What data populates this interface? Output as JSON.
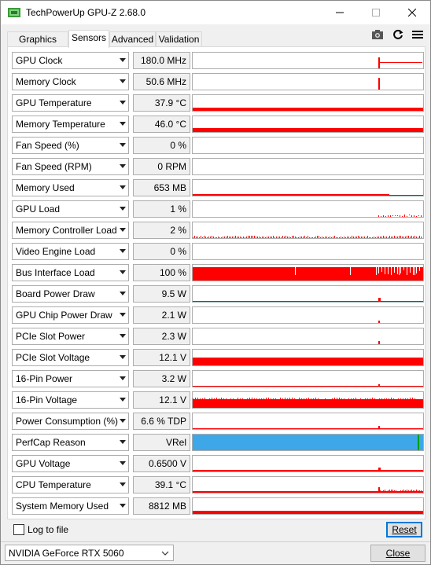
{
  "window": {
    "title": "TechPowerUp GPU-Z 2.68.0"
  },
  "tabs": [
    {
      "label": "Graphics Card"
    },
    {
      "label": "Sensors"
    },
    {
      "label": "Advanced"
    },
    {
      "label": "Validation"
    }
  ],
  "active_tab": "Sensors",
  "toolbar_icons": [
    "camera-icon",
    "refresh-icon",
    "menu-icon"
  ],
  "graph_colors": {
    "default": "#ff0000",
    "perfcap": "#3da7e8",
    "perfcap_marker": "#00a000"
  },
  "sensors": [
    {
      "name": "GPU Clock",
      "value": "180.0 MHz"
    },
    {
      "name": "Memory Clock",
      "value": "50.6 MHz"
    },
    {
      "name": "GPU Temperature",
      "value": "37.9 °C"
    },
    {
      "name": "Memory Temperature",
      "value": "46.0 °C"
    },
    {
      "name": "Fan Speed (%)",
      "value": "0 %"
    },
    {
      "name": "Fan Speed (RPM)",
      "value": "0 RPM"
    },
    {
      "name": "Memory Used",
      "value": "653 MB"
    },
    {
      "name": "GPU Load",
      "value": "1 %"
    },
    {
      "name": "Memory Controller Load",
      "value": "2 %"
    },
    {
      "name": "Video Engine Load",
      "value": "0 %"
    },
    {
      "name": "Bus Interface Load",
      "value": "100 %"
    },
    {
      "name": "Board Power Draw",
      "value": "9.5 W"
    },
    {
      "name": "GPU Chip Power Draw",
      "value": "2.1 W"
    },
    {
      "name": "PCIe Slot Power",
      "value": "2.3 W"
    },
    {
      "name": "PCIe Slot Voltage",
      "value": "12.1 V"
    },
    {
      "name": "16-Pin Power",
      "value": "3.2 W"
    },
    {
      "name": "16-Pin Voltage",
      "value": "12.1 V"
    },
    {
      "name": "Power Consumption (%)",
      "value": "6.6 % TDP"
    },
    {
      "name": "PerfCap Reason",
      "value": "VRel"
    },
    {
      "name": "GPU Voltage",
      "value": "0.6500 V"
    },
    {
      "name": "CPU Temperature",
      "value": "39.1 °C"
    },
    {
      "name": "System Memory Used",
      "value": "8812 MB"
    }
  ],
  "log_to_file": {
    "label": "Log to file",
    "checked": false
  },
  "reset_button": {
    "label": "Reset"
  },
  "gpu_select": {
    "value": "NVIDIA GeForce RTX 5060"
  },
  "close_button": {
    "label": "Close"
  }
}
